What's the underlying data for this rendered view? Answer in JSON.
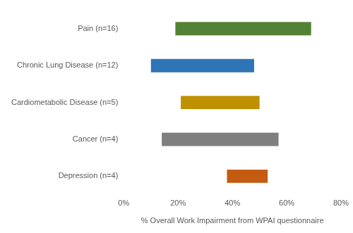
{
  "chart_data": {
    "type": "bar",
    "orientation": "horizontal",
    "categories": [
      "Pain (n=16)",
      "Chronic Lung Disease (n=12)",
      "Cardiometabolic Disease (n=5)",
      "Cancer (n=4)",
      "Depression (n=4)"
    ],
    "values": [
      [
        19,
        69
      ],
      [
        10,
        48
      ],
      [
        21,
        50
      ],
      [
        14,
        57
      ],
      [
        38,
        53
      ]
    ],
    "colors": [
      "#548235",
      "#2e75b6",
      "#bf9000",
      "#7f7f7f",
      "#c55a11"
    ],
    "x_label": "% Overall Work Impairment from WPAI questionnaire",
    "xlim": [
      0,
      80
    ],
    "xticks": [
      {
        "value": 0,
        "label": "0%"
      },
      {
        "value": 20,
        "label": "20%"
      },
      {
        "value": 40,
        "label": "40%"
      },
      {
        "value": 60,
        "label": "60%"
      },
      {
        "value": 80,
        "label": "80%"
      }
    ],
    "grid": false
  }
}
